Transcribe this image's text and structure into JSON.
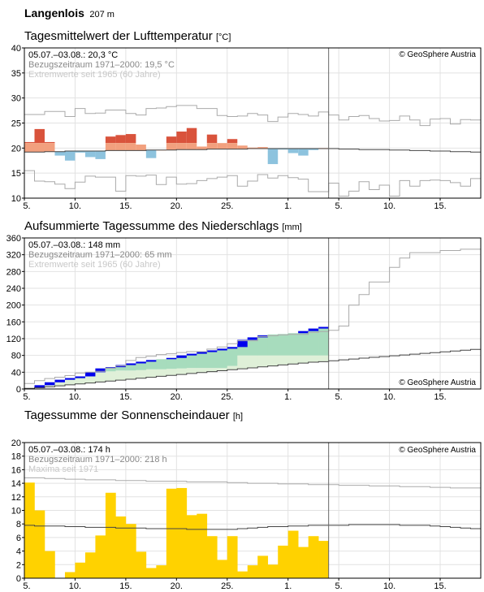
{
  "header": {
    "station": "Langenlois",
    "elevation": "207 m"
  },
  "x_ticks": [
    "5.",
    "10.",
    "15.",
    "20.",
    "25.",
    "1.",
    "5.",
    "10.",
    "15."
  ],
  "copyright": "© GeoSphere Austria",
  "colors": {
    "warm": "#f2a07e",
    "warm_dark": "#d9533c",
    "cold": "#8dc3de",
    "precip_fill": "#a7dcbd",
    "precip_light": "#dff0d8",
    "precip_excess": "#0000ee",
    "sun": "#ffd200",
    "frame": "#000000",
    "grid": "#e2e2e2",
    "extreme": "#aaaaaa"
  },
  "panels": {
    "temp": {
      "title": "Tagesmittelwert der Lufttemperatur",
      "unit": "[°C]",
      "legend": [
        "05.07.–03.08.: 20,3 °C",
        "Bezugszeitraum 1971–2000: 19,5 °C",
        "Extremwerte seit 1965 (60 Jahre)"
      ]
    },
    "precip": {
      "title": "Aufsummierte Tagessumme des Niederschlags",
      "unit": "[mm]",
      "legend": [
        "05.07.–03.08.: 148 mm",
        "Bezugszeitraum 1971–2000: 65 mm",
        "Extremwerte seit 1965 (60 Jahre)"
      ]
    },
    "sun": {
      "title": "Tagessumme der Sonnenscheindauer",
      "unit": "[h]",
      "legend": [
        "05.07.–03.08.: 174 h",
        "Bezugszeitraum 1971–2000: 218 h",
        "Maxima seit 1971"
      ]
    }
  },
  "chart_data": [
    {
      "type": "bar",
      "title": "Tagesmittelwert der Lufttemperatur",
      "ylabel": "°C",
      "ylim": [
        10,
        40
      ],
      "yticks": [
        10,
        15,
        20,
        25,
        30,
        35,
        40
      ],
      "x": [
        "05.07.",
        "06.07.",
        "07.07.",
        "08.07.",
        "09.07.",
        "10.07.",
        "11.07.",
        "12.07.",
        "13.07.",
        "14.07.",
        "15.07.",
        "16.07.",
        "17.07.",
        "18.07.",
        "19.07.",
        "20.07.",
        "21.07.",
        "22.07.",
        "23.07.",
        "24.07.",
        "25.07.",
        "26.07.",
        "27.07.",
        "28.07.",
        "29.07.",
        "30.07.",
        "31.07.",
        "01.08.",
        "02.08.",
        "03.08."
      ],
      "values": [
        21.2,
        23.8,
        21.2,
        18.5,
        17.5,
        19.1,
        18.2,
        17.8,
        22.3,
        22.6,
        22.8,
        20.7,
        18.0,
        19.6,
        22.3,
        23.3,
        24.0,
        20.3,
        22.7,
        21.0,
        21.8,
        20.5,
        20.1,
        20.2,
        16.8,
        19.7,
        19.0,
        18.5,
        19.6,
        20.0
      ],
      "normal": [
        19.2,
        19.2,
        19.3,
        19.3,
        19.4,
        19.4,
        19.4,
        19.4,
        19.5,
        19.5,
        19.5,
        19.5,
        19.6,
        19.6,
        19.6,
        19.7,
        19.7,
        19.7,
        19.8,
        19.8,
        19.8,
        19.8,
        19.9,
        19.9,
        19.9,
        19.9,
        19.9,
        19.9,
        19.9,
        19.9,
        19.9,
        19.8,
        19.8,
        19.7,
        19.7,
        19.7,
        19.6,
        19.6,
        19.5,
        19.5,
        19.4,
        19.4,
        19.3,
        19.3,
        19.2
      ],
      "normal_band": [
        19.0,
        21.0
      ],
      "ext_max": [
        26.7,
        26.7,
        27.3,
        27.3,
        26.3,
        27.9,
        26.9,
        27.0,
        27.6,
        27.6,
        26.9,
        26.6,
        27.9,
        28.0,
        28.3,
        28.5,
        28.5,
        27.9,
        27.9,
        26.5,
        26.3,
        26.4,
        26.9,
        26.6,
        25.3,
        26.2,
        26.9,
        26.7,
        26.4,
        27.2,
        26.6,
        25.6,
        26.3,
        26.5,
        25.9,
        25.4,
        25.5,
        26.4,
        25.6,
        24.5,
        25.8,
        25.9,
        24.8,
        25.7,
        25.6
      ],
      "ext_min": [
        15.5,
        13.4,
        13.3,
        12.8,
        11.9,
        13.2,
        14.4,
        14.2,
        14.2,
        11.4,
        14.5,
        14.4,
        14.6,
        12.7,
        14.2,
        12.8,
        12.9,
        13.5,
        13.9,
        14.2,
        14.5,
        12.4,
        13.4,
        14.7,
        14.0,
        14.5,
        14.1,
        13.8,
        11.3,
        11.3,
        13.0,
        10.4,
        11.4,
        13.3,
        11.7,
        12.6,
        10.4,
        13.5,
        12.4,
        13.5,
        13.6,
        13.5,
        13.1,
        12.4,
        13.9
      ]
    },
    {
      "type": "area",
      "title": "Aufsummierte Tagessumme des Niederschlags",
      "ylabel": "mm",
      "ylim": [
        0,
        360
      ],
      "yticks": [
        0,
        40,
        80,
        120,
        160,
        200,
        240,
        280,
        320,
        360
      ],
      "cumulative": [
        5,
        14,
        20,
        22,
        22,
        25,
        31,
        40,
        42,
        44,
        44,
        45,
        47,
        47,
        48,
        49,
        50,
        50,
        50,
        50,
        55,
        80,
        80,
        80,
        80,
        80,
        80,
        80,
        80,
        80
      ],
      "observed_cumulative": [
        2,
        9,
        16,
        22,
        26,
        30,
        40,
        49,
        52,
        57,
        61,
        65,
        69,
        71,
        74,
        80,
        84,
        88,
        92,
        96,
        100,
        117,
        123,
        128,
        130,
        131,
        133,
        138,
        144,
        148
      ],
      "normal_cumulative": [
        1.5,
        3.5,
        5.4,
        7.6,
        9.8,
        12.1,
        14.3,
        16.6,
        18.8,
        21.1,
        23.3,
        25.6,
        27.9,
        30.1,
        32.4,
        34.6,
        36.9,
        39.1,
        41.4,
        43.6,
        45.9,
        48.2,
        50.4,
        52.7,
        55.0,
        57.2,
        59.5,
        61.7,
        63.8,
        65.0,
        67.2,
        69.4,
        71.5,
        73.5,
        75.4,
        77.3,
        79.2,
        81.1,
        83.0,
        84.9,
        86.8,
        88.7,
        90.6,
        92.5,
        94.3
      ],
      "ext_max": [
        13,
        20,
        25,
        28,
        32,
        38,
        40,
        42,
        50,
        55,
        68,
        75,
        78,
        82,
        84,
        87,
        89,
        89,
        95,
        100,
        108,
        115,
        115,
        125,
        127,
        129,
        130,
        130,
        135,
        137,
        140,
        150,
        200,
        225,
        255,
        255,
        290,
        312,
        325,
        325,
        325,
        330,
        330,
        333,
        333
      ],
      "ext_min": [
        0,
        0,
        0,
        0,
        0,
        0,
        0,
        0,
        0,
        0,
        0,
        0,
        0,
        0,
        0,
        0,
        0,
        0,
        0,
        0,
        0,
        0,
        0,
        0,
        0,
        0,
        0,
        0,
        0,
        0,
        0,
        0,
        0,
        0,
        0,
        0,
        0,
        0,
        0,
        0,
        0,
        0,
        0,
        0,
        0
      ]
    },
    {
      "type": "bar",
      "title": "Tagessumme der Sonnenscheindauer",
      "ylabel": "h",
      "ylim": [
        0,
        20
      ],
      "yticks": [
        0,
        2,
        4,
        6,
        8,
        10,
        12,
        14,
        16,
        18,
        20
      ],
      "values": [
        14.1,
        10.0,
        4.0,
        0.0,
        0.9,
        2.3,
        3.8,
        6.3,
        12.6,
        9.1,
        8.0,
        3.9,
        1.5,
        1.9,
        13.2,
        13.3,
        9.3,
        9.5,
        6.2,
        2.7,
        6.2,
        1.0,
        1.9,
        3.3,
        2.0,
        4.8,
        7.0,
        4.6,
        6.2,
        5.5
      ],
      "normal": [
        7.8,
        7.7,
        7.7,
        7.7,
        7.6,
        7.6,
        7.5,
        7.5,
        7.5,
        7.4,
        7.4,
        7.4,
        7.3,
        7.3,
        7.3,
        7.3,
        7.2,
        7.2,
        7.2,
        7.2,
        7.2,
        7.3,
        7.4,
        7.5,
        7.6,
        7.6,
        7.7,
        7.7,
        7.8,
        7.8,
        7.8,
        7.8,
        7.9,
        7.9,
        7.9,
        7.9,
        7.9,
        7.8,
        7.8,
        7.8,
        7.7,
        7.6,
        7.5,
        7.4,
        7.3
      ],
      "max": [
        14.8,
        14.8,
        14.7,
        14.7,
        14.6,
        14.6,
        14.5,
        14.5,
        14.5,
        14.4,
        14.4,
        14.4,
        14.3,
        14.3,
        14.3,
        14.3,
        14.2,
        14.2,
        14.2,
        14.2,
        14.1,
        14.1,
        14.0,
        14.0,
        14.0,
        13.9,
        13.9,
        13.9,
        13.8,
        13.8,
        13.8,
        13.7,
        13.7,
        13.7,
        13.6,
        13.6,
        13.6,
        13.5,
        13.5,
        13.5,
        13.4,
        13.4,
        13.3,
        13.3,
        13.3
      ]
    }
  ]
}
